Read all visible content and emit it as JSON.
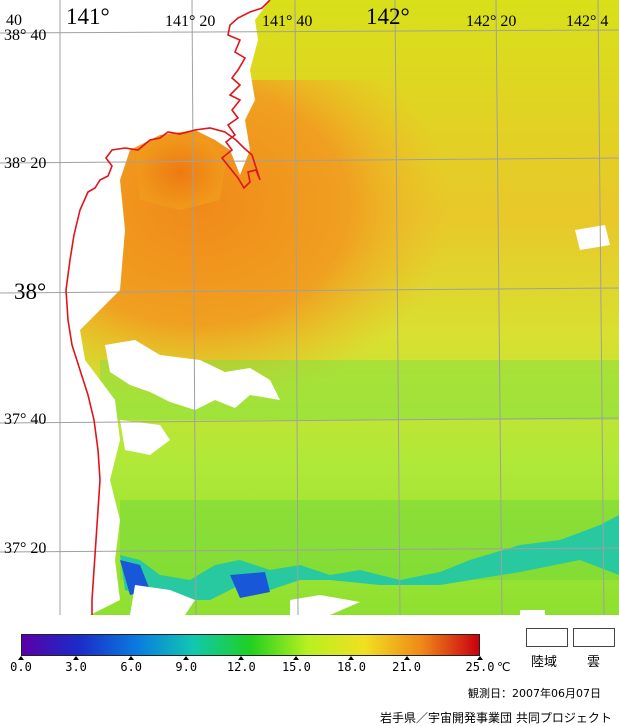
{
  "map": {
    "lon_labels": [
      {
        "text": "141°",
        "size": "big"
      },
      {
        "text": "141° 20",
        "size": "sm"
      },
      {
        "text": "141° 40",
        "size": "sm"
      },
      {
        "text": "142°",
        "size": "big"
      },
      {
        "text": "142° 20",
        "size": "sm"
      },
      {
        "text": "142° 4",
        "size": "sm"
      }
    ],
    "lat_labels": [
      {
        "text": "40",
        "size": "sm"
      },
      {
        "text": "38° 40",
        "size": "sm"
      },
      {
        "text": "38° 20",
        "size": "sm"
      },
      {
        "text": "38°",
        "size": "big"
      },
      {
        "text": "37° 40",
        "size": "sm"
      },
      {
        "text": "37° 20",
        "size": "sm"
      }
    ],
    "colors": {
      "coastline": "#e0141c",
      "grid": "#a0a0a0",
      "land": "#ffffff",
      "cloud": "#ffffff"
    }
  },
  "legend": {
    "colorbar": {
      "min": 0.0,
      "max": 25.0,
      "unit": "℃",
      "ticks": [
        "0.0",
        "3.0",
        "6.0",
        "9.0",
        "12.0",
        "15.0",
        "18.0",
        "21.0",
        "25.0"
      ],
      "tick_values": [
        0,
        3,
        6,
        9,
        12,
        15,
        18,
        21,
        25
      ],
      "colors": [
        "#5a00a8",
        "#1a2cc8",
        "#0a7ae0",
        "#10c8b0",
        "#20d020",
        "#b8f020",
        "#f0e020",
        "#f08818",
        "#c80010"
      ]
    },
    "land_label": "陸域",
    "cloud_label": "雲"
  },
  "footer": {
    "observation_date": "観測日：2007年06月07日",
    "credit": "岩手県／宇宙開発事業団 共同プロジェクト"
  }
}
